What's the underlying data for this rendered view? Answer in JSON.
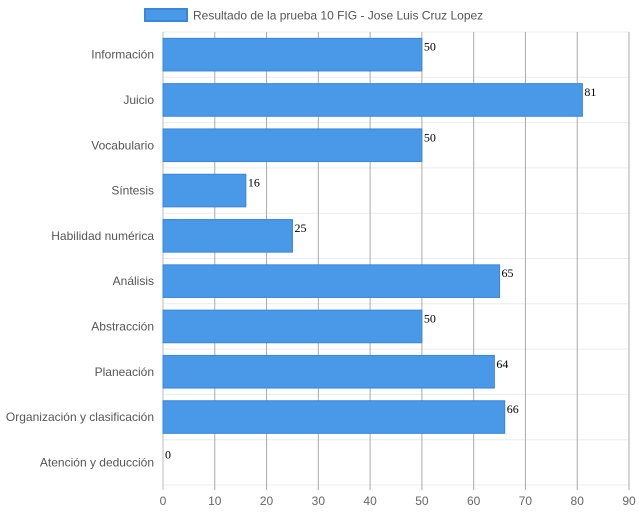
{
  "chart_data": {
    "type": "bar",
    "orientation": "horizontal",
    "categories": [
      "Información",
      "Juicio",
      "Vocabulario",
      "Síntesis",
      "Habilidad numérica",
      "Análisis",
      "Abstracción",
      "Planeación",
      "Organización y clasificación",
      "Atención y deducción"
    ],
    "series": [
      {
        "name": "Resultado de la prueba 10 FIG - Jose Luis Cruz Lopez",
        "values": [
          50,
          81,
          50,
          16,
          25,
          65,
          50,
          64,
          66,
          0
        ],
        "color": "#4a98e8",
        "border_color": "#3a86d8"
      }
    ],
    "xlim": [
      0,
      90
    ],
    "x_ticks": [
      0,
      10,
      20,
      30,
      40,
      50,
      60,
      70,
      80,
      90
    ],
    "grid": true,
    "legend_position": "top",
    "show_data_labels": true
  }
}
